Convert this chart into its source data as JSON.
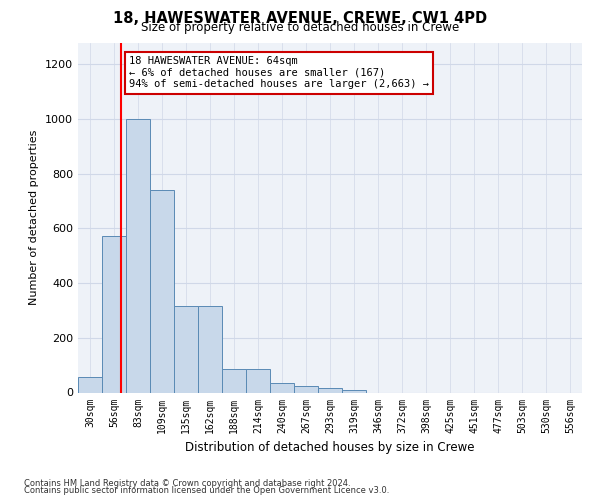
{
  "title": "18, HAWESWATER AVENUE, CREWE, CW1 4PD",
  "subtitle": "Size of property relative to detached houses in Crewe",
  "xlabel": "Distribution of detached houses by size in Crewe",
  "ylabel": "Number of detached properties",
  "footnote1": "Contains HM Land Registry data © Crown copyright and database right 2024.",
  "footnote2": "Contains public sector information licensed under the Open Government Licence v3.0.",
  "annotation_title": "18 HAWESWATER AVENUE: 64sqm",
  "annotation_line1": "← 6% of detached houses are smaller (167)",
  "annotation_line2": "94% of semi-detached houses are larger (2,663) →",
  "property_size": 64,
  "bar_color": "#c8d8ea",
  "bar_edge_color": "#5a8ab5",
  "red_line_x": 64,
  "annotation_box_color": "#cc0000",
  "categories": [
    "30sqm",
    "56sqm",
    "83sqm",
    "109sqm",
    "135sqm",
    "162sqm",
    "188sqm",
    "214sqm",
    "240sqm",
    "267sqm",
    "293sqm",
    "319sqm",
    "346sqm",
    "372sqm",
    "398sqm",
    "425sqm",
    "451sqm",
    "477sqm",
    "503sqm",
    "530sqm",
    "556sqm"
  ],
  "bin_edges": [
    16.5,
    43,
    69.5,
    96,
    122.5,
    149,
    175.5,
    202,
    228.5,
    255,
    281.5,
    308,
    334.5,
    361,
    387.5,
    414,
    440.5,
    467,
    493.5,
    520,
    546.5,
    573
  ],
  "values": [
    57,
    573,
    1000,
    740,
    315,
    315,
    85,
    87,
    35,
    22,
    18,
    10,
    0,
    0,
    0,
    0,
    0,
    0,
    0,
    0,
    0
  ],
  "ylim": [
    0,
    1280
  ],
  "yticks": [
    0,
    200,
    400,
    600,
    800,
    1000,
    1200
  ],
  "grid_color": "#d0d8e8",
  "background_color": "#eef2f8"
}
